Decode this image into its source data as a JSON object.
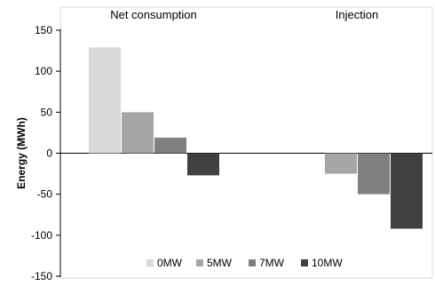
{
  "chart_data": {
    "type": "bar",
    "title": "",
    "xlabel": "",
    "ylabel": "Energy (MWh)",
    "categories": [
      "Net consumption",
      "Injection"
    ],
    "series": [
      {
        "name": "0MW",
        "values": [
          129,
          0
        ],
        "color": "#d9d9d9"
      },
      {
        "name": "5MW",
        "values": [
          50,
          -25
        ],
        "color": "#a6a6a6"
      },
      {
        "name": "7MW",
        "values": [
          19,
          -50
        ],
        "color": "#808080"
      },
      {
        "name": "10MW",
        "values": [
          -27,
          -92
        ],
        "color": "#404040"
      }
    ],
    "ylim": [
      -150,
      150
    ],
    "yticks": [
      -150,
      -100,
      -50,
      0,
      50,
      100,
      150
    ],
    "legend": "bottom",
    "grid": false
  }
}
